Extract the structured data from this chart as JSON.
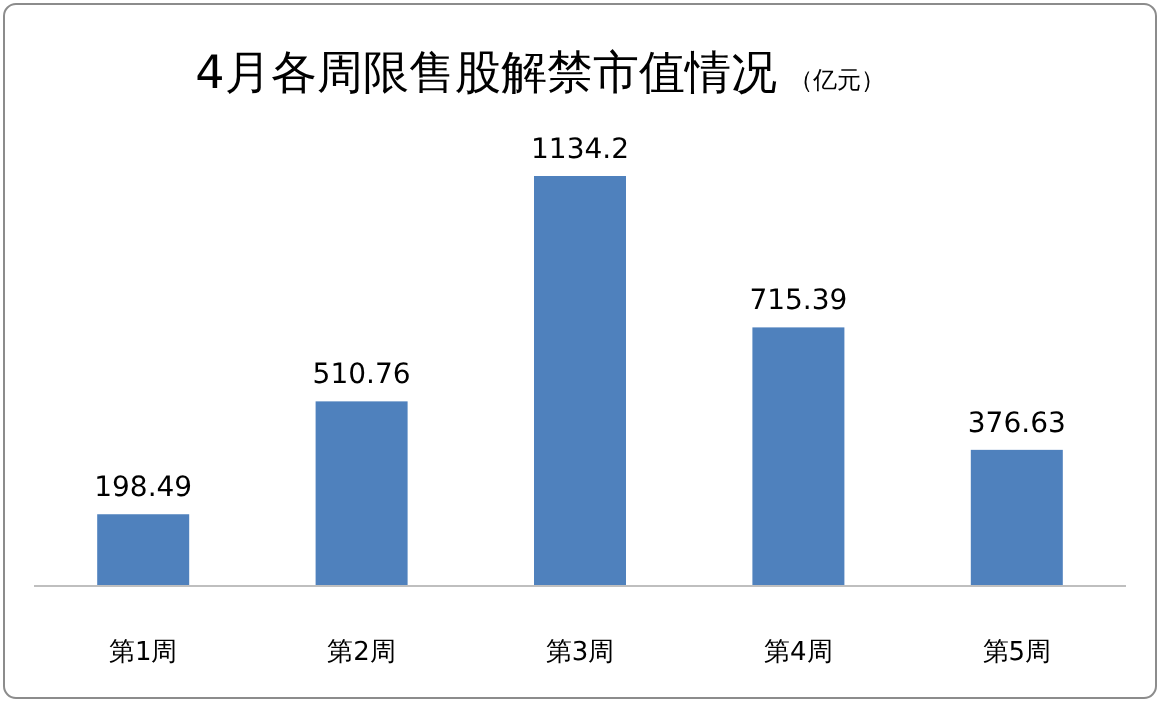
{
  "chart_data": {
    "type": "bar",
    "title": "4月各周限售股解禁市值情况",
    "subtitle": "（亿元）",
    "categories": [
      "第1周",
      "第2周",
      "第3周",
      "第4周",
      "第5周"
    ],
    "values": [
      198.49,
      510.76,
      1134.2,
      715.39,
      376.63
    ],
    "color": "#4f81bd",
    "data_labels": true
  }
}
